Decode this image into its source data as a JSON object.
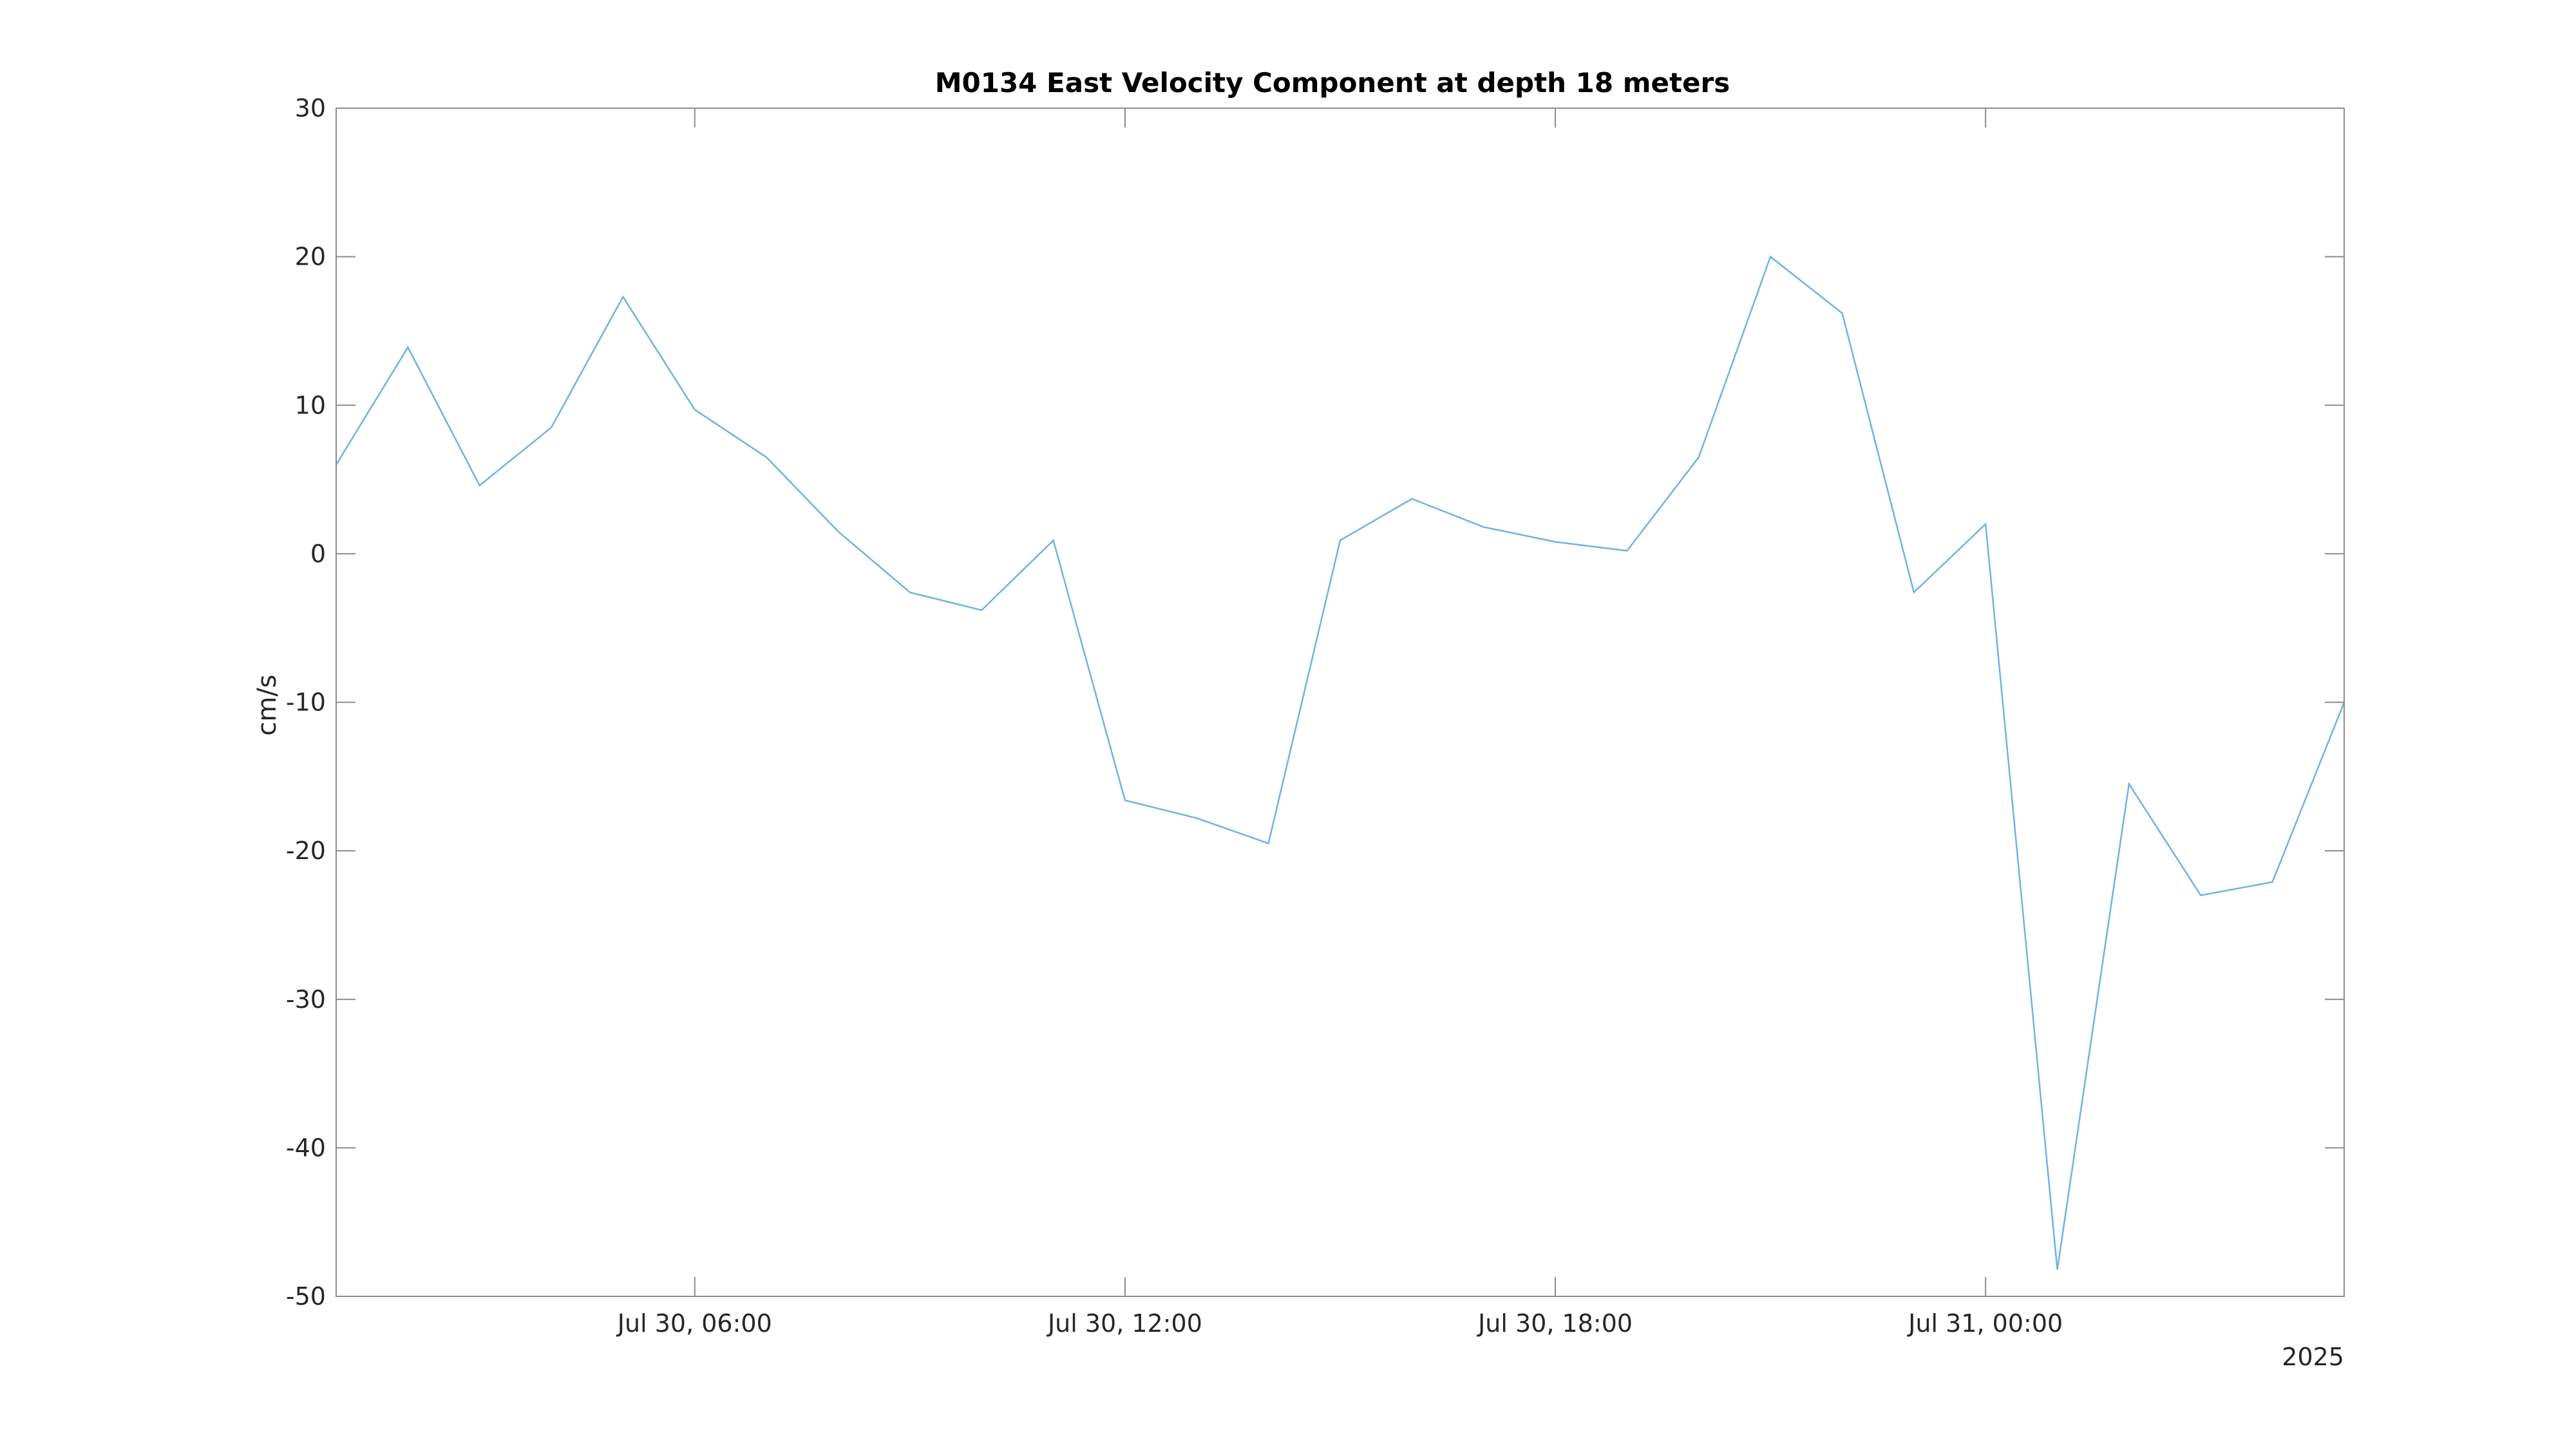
{
  "chart_data": {
    "type": "line",
    "title": "M0134 East Velocity Component at depth 18 meters",
    "xlabel": "",
    "ylabel": "cm/s",
    "x_secondary_label": "2025",
    "ylim": [
      -50,
      30
    ],
    "xlim": [
      "2025-07-30T01:00",
      "2025-07-31T05:00"
    ],
    "grid": false,
    "y_ticks": [
      30,
      20,
      10,
      0,
      -10,
      -20,
      -30,
      -40,
      -50
    ],
    "x_ticks": [
      {
        "at": "2025-07-30T06:00",
        "label": "Jul 30, 06:00"
      },
      {
        "at": "2025-07-30T12:00",
        "label": "Jul 30, 12:00"
      },
      {
        "at": "2025-07-30T18:00",
        "label": "Jul 30, 18:00"
      },
      {
        "at": "2025-07-31T00:00",
        "label": "Jul 31, 00:00"
      }
    ],
    "series": [
      {
        "color": "#6FB3E3",
        "x": [
          "2025-07-30T01:00",
          "2025-07-30T02:00",
          "2025-07-30T03:00",
          "2025-07-30T04:00",
          "2025-07-30T05:00",
          "2025-07-30T06:00",
          "2025-07-30T07:00",
          "2025-07-30T08:00",
          "2025-07-30T09:00",
          "2025-07-30T10:00",
          "2025-07-30T11:00",
          "2025-07-30T12:00",
          "2025-07-30T13:00",
          "2025-07-30T14:00",
          "2025-07-30T15:00",
          "2025-07-30T16:00",
          "2025-07-30T17:00",
          "2025-07-30T18:00",
          "2025-07-30T19:00",
          "2025-07-30T20:00",
          "2025-07-30T21:00",
          "2025-07-30T22:00",
          "2025-07-30T23:00",
          "2025-07-31T00:00",
          "2025-07-31T01:00",
          "2025-07-31T02:00",
          "2025-07-31T03:00",
          "2025-07-31T04:00",
          "2025-07-31T05:00"
        ],
        "values": [
          6.0,
          13.9,
          4.6,
          8.5,
          17.3,
          9.7,
          6.5,
          1.5,
          -2.6,
          -3.8,
          0.9,
          -16.6,
          -17.8,
          -19.5,
          0.9,
          3.7,
          1.8,
          0.8,
          0.2,
          6.5,
          20.0,
          16.2,
          -2.6,
          2.0,
          -48.2,
          -15.5,
          -23.0,
          -22.1,
          -10.0
        ]
      }
    ]
  }
}
